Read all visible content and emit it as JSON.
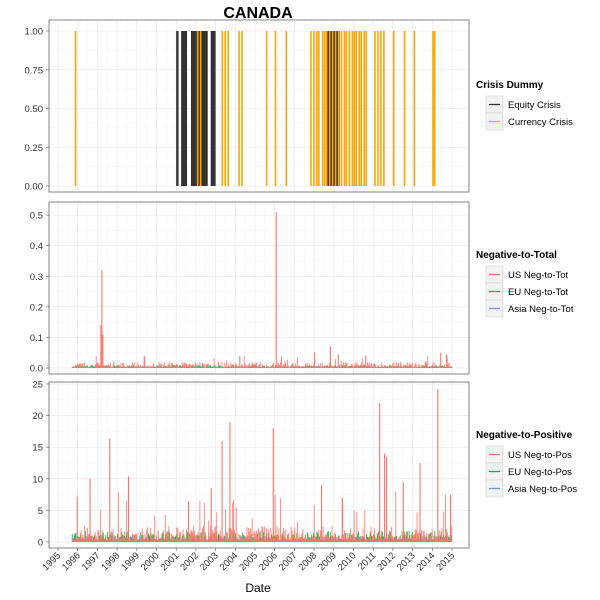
{
  "chart_data": {
    "title": "CANADA",
    "xlabel": "Date",
    "x_tick_labels": [
      "1995",
      "1996",
      "1997",
      "1998",
      "1999",
      "2000",
      "2001",
      "2002",
      "2003",
      "2004",
      "2005",
      "2006",
      "2007",
      "2008",
      "2009",
      "2010",
      "2011",
      "2012",
      "2013",
      "2014",
      "2015"
    ],
    "xlim": [
      1995,
      2015
    ],
    "grid": true,
    "legend_placement": "right",
    "panels": [
      {
        "type": "bar",
        "ylim": [
          0,
          1
        ],
        "y_tick_labels": [
          "0.00",
          "0.25",
          "0.50",
          "0.75",
          "1.00"
        ],
        "legend_title": "Crisis Dummy",
        "series": [
          {
            "name": "Equity Crisis",
            "color": "#333333",
            "periods": [
              [
                2001.0,
                2001.12
              ],
              [
                2001.25,
                2001.55
              ],
              [
                2001.75,
                2002.6
              ],
              [
                2002.75,
                2003.0
              ],
              [
                2008.62,
                2009.3
              ]
            ]
          },
          {
            "name": "Currency Crisis",
            "color": "#ffa500",
            "dates": [
              1995.85,
              2002.05,
              2002.2,
              2003.3,
              2003.45,
              2003.6,
              2004.15,
              2004.3,
              2005.55,
              2006.0,
              2006.55,
              2007.8,
              2007.95,
              2008.1,
              2008.2,
              2008.4,
              2008.5,
              2008.6,
              2008.75,
              2008.9,
              2009.05,
              2009.2,
              2009.35,
              2009.5,
              2009.6,
              2009.75,
              2009.9,
              2010.0,
              2010.1,
              2010.25,
              2010.35,
              2010.5,
              2010.6,
              2011.05,
              2011.2,
              2011.35,
              2011.5,
              2012.0,
              2012.55,
              2013.05,
              2014.0,
              2014.08
            ],
            "value": 1
          }
        ]
      },
      {
        "type": "bar",
        "ylim": [
          0,
          0.52
        ],
        "y_tick_labels": [
          "0.0",
          "0.1",
          "0.2",
          "0.3",
          "0.4",
          "0.5"
        ],
        "legend_title": "Negative-to-Total",
        "series": [
          {
            "name": "US Neg-to-Tot",
            "color": "#f8766d"
          },
          {
            "name": "EU Neg-to-Tot",
            "color": "#00ba38"
          },
          {
            "name": "Asia Neg-to-Tot",
            "color": "#619cff"
          }
        ],
        "peaks": [
          {
            "series": "US Neg-to-Tot",
            "x": 1997.2,
            "y": 0.32
          },
          {
            "series": "US Neg-to-Tot",
            "x": 1997.15,
            "y": 0.14
          },
          {
            "series": "US Neg-to-Tot",
            "x": 1997.25,
            "y": 0.11
          },
          {
            "series": "US Neg-to-Tot",
            "x": 2006.05,
            "y": 0.51
          },
          {
            "series": "US Neg-to-Tot",
            "x": 2008.8,
            "y": 0.07
          },
          {
            "series": "US Neg-to-Tot",
            "x": 2008.0,
            "y": 0.05
          },
          {
            "series": "US Neg-to-Tot",
            "x": 2009.2,
            "y": 0.045
          },
          {
            "series": "US Neg-to-Tot",
            "x": 2010.6,
            "y": 0.04
          },
          {
            "series": "US Neg-to-Tot",
            "x": 2004.2,
            "y": 0.04
          },
          {
            "series": "US Neg-to-Tot",
            "x": 2014.4,
            "y": 0.05
          },
          {
            "series": "US Neg-to-Tot",
            "x": 2014.7,
            "y": 0.045
          }
        ],
        "baseline": {
          "US Neg-to-Tot": 0.012,
          "EU Neg-to-Tot": 0.006,
          "Asia Neg-to-Tot": 0.004
        }
      },
      {
        "type": "bar",
        "ylim": [
          0,
          25
        ],
        "y_tick_labels": [
          "0",
          "5",
          "10",
          "15",
          "20",
          "25"
        ],
        "legend_title": "Negative-to-Positive",
        "series": [
          {
            "name": "US Neg-to-Pos",
            "color": "#f8766d"
          },
          {
            "name": "EU Neg-to-Pos",
            "color": "#00ba38"
          },
          {
            "name": "Asia Neg-to-Pos",
            "color": "#619cff"
          }
        ],
        "peaks": [
          {
            "series": "US Neg-to-Pos",
            "x": 2014.25,
            "y": 24.2
          },
          {
            "series": "US Neg-to-Pos",
            "x": 2011.3,
            "y": 22.0
          },
          {
            "series": "US Neg-to-Pos",
            "x": 2003.7,
            "y": 19.0
          },
          {
            "series": "US Neg-to-Pos",
            "x": 2005.9,
            "y": 18.0
          },
          {
            "series": "US Neg-to-Pos",
            "x": 1997.6,
            "y": 16.4
          },
          {
            "series": "US Neg-to-Pos",
            "x": 2003.3,
            "y": 16.0
          },
          {
            "series": "US Neg-to-Pos",
            "x": 2011.55,
            "y": 14.0
          },
          {
            "series": "US Neg-to-Pos",
            "x": 2011.65,
            "y": 13.5
          },
          {
            "series": "US Neg-to-Pos",
            "x": 2013.35,
            "y": 12.5
          },
          {
            "series": "US Neg-to-Pos",
            "x": 1998.55,
            "y": 10.4
          },
          {
            "series": "US Neg-to-Pos",
            "x": 1996.6,
            "y": 10.0
          },
          {
            "series": "US Neg-to-Pos",
            "x": 2012.5,
            "y": 9.5
          },
          {
            "series": "US Neg-to-Pos",
            "x": 2008.35,
            "y": 9.0
          },
          {
            "series": "US Neg-to-Pos",
            "x": 2002.75,
            "y": 8.5
          },
          {
            "series": "US Neg-to-Pos",
            "x": 2014.9,
            "y": 7.5
          },
          {
            "series": "US Neg-to-Pos",
            "x": 1995.95,
            "y": 7.2
          },
          {
            "series": "US Neg-to-Pos",
            "x": 2009.4,
            "y": 7.0
          },
          {
            "series": "US Neg-to-Pos",
            "x": 2001.6,
            "y": 6.5
          }
        ],
        "baseline": {
          "US Neg-to-Pos": 1.6,
          "EU Neg-to-Pos": 1.0,
          "Asia Neg-to-Pos": 0.6
        }
      }
    ]
  }
}
